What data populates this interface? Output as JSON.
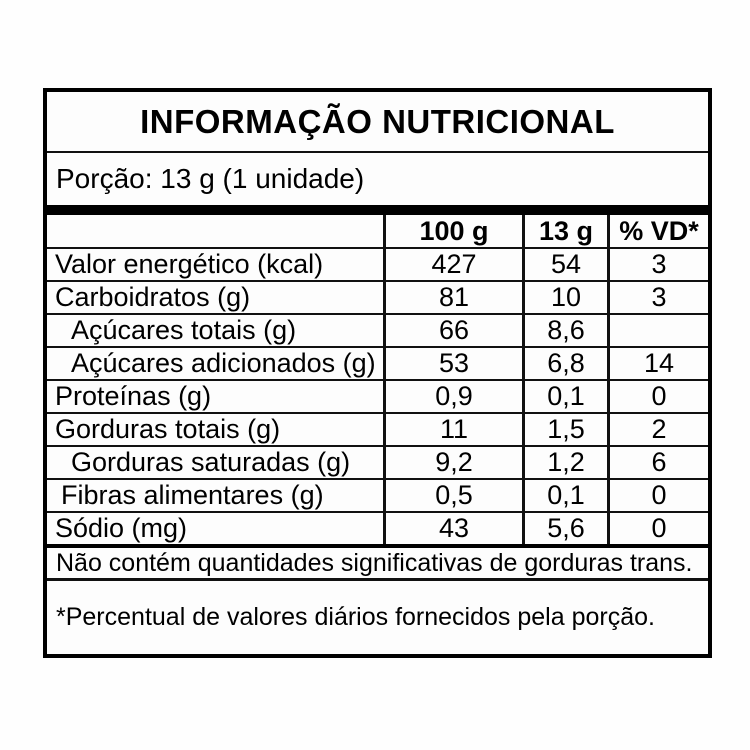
{
  "title": "INFORMAÇÃO NUTRICIONAL",
  "portion": "Porção: 13 g (1 unidade)",
  "table": {
    "headers": {
      "per_100g": "100 g",
      "per_13g": "13 g",
      "daily_value": "% VD*"
    },
    "rows": [
      {
        "label": "Valor energético (kcal)",
        "per100": "427",
        "per13": "54",
        "vd": "3"
      },
      {
        "label": "Carboidratos (g)",
        "per100": "81",
        "per13": "10",
        "vd": "3"
      },
      {
        "label": "Açúcares totais (g)",
        "per100": "66",
        "per13": "8,6",
        "vd": ""
      },
      {
        "label": "Açúcares adicionados (g)",
        "per100": "53",
        "per13": "6,8",
        "vd": "14"
      },
      {
        "label": "Proteínas (g)",
        "per100": "0,9",
        "per13": "0,1",
        "vd": "0"
      },
      {
        "label": "Gorduras totais (g)",
        "per100": "11",
        "per13": "1,5",
        "vd": "2"
      },
      {
        "label": "Gorduras saturadas (g)",
        "per100": "9,2",
        "per13": "1,2",
        "vd": "6"
      },
      {
        "label": "Fibras alimentares (g)",
        "per100": "0,5",
        "per13": "0,1",
        "vd": "0"
      },
      {
        "label": "Sódio (mg)",
        "per100": "43",
        "per13": "5,6",
        "vd": "0"
      }
    ]
  },
  "notes": {
    "trans_fat": "Não contém quantidades significativas de gorduras trans.",
    "daily_values": "*Percentual de valores diários fornecidos pela porção."
  },
  "colors": {
    "border": "#000000",
    "text": "#000000",
    "background": "#ffffff"
  }
}
